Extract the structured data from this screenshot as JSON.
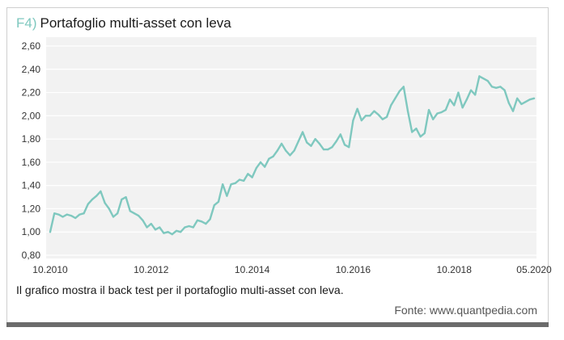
{
  "figure": {
    "number": "F4)",
    "title": "Portafoglio multi-asset con leva",
    "caption": "Il grafico mostra il back test per il portafoglio multi-asset con leva.",
    "source": "Fonte: www.quantpedia.com"
  },
  "colors": {
    "line": "#7fc8bf",
    "plot_bg": "#f2f2f2",
    "grid": "#ffffff",
    "accent": "#7fc8bf"
  },
  "chart_data": {
    "type": "line",
    "title": "Portafoglio multi-asset con leva",
    "xlabel": "",
    "ylabel": "",
    "ylim": [
      0.8,
      2.6
    ],
    "y_ticks": [
      "2,60",
      "2,40",
      "2,20",
      "2,00",
      "1,80",
      "1,60",
      "1,40",
      "1,20",
      "1,00",
      "0,80"
    ],
    "y_tick_values": [
      2.6,
      2.4,
      2.2,
      2.0,
      1.8,
      1.6,
      1.4,
      1.2,
      1.0,
      0.8
    ],
    "x_ticks": [
      "10.2010",
      "10.2012",
      "10.2014",
      "10.2016",
      "10.2018",
      "05.2020"
    ],
    "x_tick_values": [
      "2010-10",
      "2012-10",
      "2014-10",
      "2016-10",
      "2018-10",
      "2020-05"
    ],
    "grid": true,
    "series": [
      {
        "x": [
          "2010-10",
          "2010-11",
          "2010-12",
          "2011-01",
          "2011-02",
          "2011-03",
          "2011-04",
          "2011-05",
          "2011-06",
          "2011-07",
          "2011-08",
          "2011-09",
          "2011-10",
          "2011-11",
          "2011-12",
          "2012-01",
          "2012-02",
          "2012-03",
          "2012-04",
          "2012-05",
          "2012-06",
          "2012-07",
          "2012-08",
          "2012-09",
          "2012-10",
          "2012-11",
          "2012-12",
          "2013-01",
          "2013-02",
          "2013-03",
          "2013-04",
          "2013-05",
          "2013-06",
          "2013-07",
          "2013-08",
          "2013-09",
          "2013-10",
          "2013-11",
          "2013-12",
          "2014-01",
          "2014-02",
          "2014-03",
          "2014-04",
          "2014-05",
          "2014-06",
          "2014-07",
          "2014-08",
          "2014-09",
          "2014-10",
          "2014-11",
          "2014-12",
          "2015-01",
          "2015-02",
          "2015-03",
          "2015-04",
          "2015-05",
          "2015-06",
          "2015-07",
          "2015-08",
          "2015-09",
          "2015-10",
          "2015-11",
          "2015-12",
          "2016-01",
          "2016-02",
          "2016-03",
          "2016-04",
          "2016-05",
          "2016-06",
          "2016-07",
          "2016-08",
          "2016-09",
          "2016-10",
          "2016-11",
          "2016-12",
          "2017-01",
          "2017-02",
          "2017-03",
          "2017-04",
          "2017-05",
          "2017-06",
          "2017-07",
          "2017-08",
          "2017-09",
          "2017-10",
          "2017-11",
          "2017-12",
          "2018-01",
          "2018-02",
          "2018-03",
          "2018-04",
          "2018-05",
          "2018-06",
          "2018-07",
          "2018-08",
          "2018-09",
          "2018-10",
          "2018-11",
          "2018-12",
          "2019-01",
          "2019-02",
          "2019-03",
          "2019-04",
          "2019-05",
          "2019-06",
          "2019-07",
          "2019-08",
          "2019-09",
          "2019-10",
          "2019-11",
          "2019-12",
          "2020-01",
          "2020-02",
          "2020-03",
          "2020-04",
          "2020-05"
        ],
        "values": [
          1.0,
          1.16,
          1.15,
          1.13,
          1.15,
          1.14,
          1.12,
          1.15,
          1.16,
          1.24,
          1.28,
          1.31,
          1.35,
          1.25,
          1.2,
          1.13,
          1.16,
          1.28,
          1.3,
          1.18,
          1.16,
          1.14,
          1.1,
          1.04,
          1.07,
          1.02,
          1.04,
          0.99,
          1.0,
          0.98,
          1.01,
          1.0,
          1.04,
          1.05,
          1.04,
          1.1,
          1.09,
          1.07,
          1.11,
          1.23,
          1.26,
          1.41,
          1.31,
          1.41,
          1.42,
          1.45,
          1.44,
          1.5,
          1.47,
          1.55,
          1.6,
          1.56,
          1.63,
          1.65,
          1.7,
          1.76,
          1.7,
          1.66,
          1.7,
          1.78,
          1.86,
          1.77,
          1.74,
          1.8,
          1.76,
          1.71,
          1.71,
          1.73,
          1.78,
          1.84,
          1.75,
          1.73,
          1.96,
          2.06,
          1.96,
          2.0,
          2.0,
          2.04,
          2.01,
          1.97,
          1.99,
          2.09,
          2.15,
          2.21,
          2.25,
          2.04,
          1.86,
          1.89,
          1.82,
          1.85,
          2.05,
          1.97,
          2.02,
          2.03,
          2.05,
          2.14,
          2.09,
          2.2,
          2.07,
          2.14,
          2.22,
          2.18,
          2.34,
          2.32,
          2.3,
          2.25,
          2.24,
          2.25,
          2.22,
          2.11,
          2.04,
          2.15,
          2.1,
          2.12,
          2.14,
          2.15
        ]
      }
    ]
  }
}
